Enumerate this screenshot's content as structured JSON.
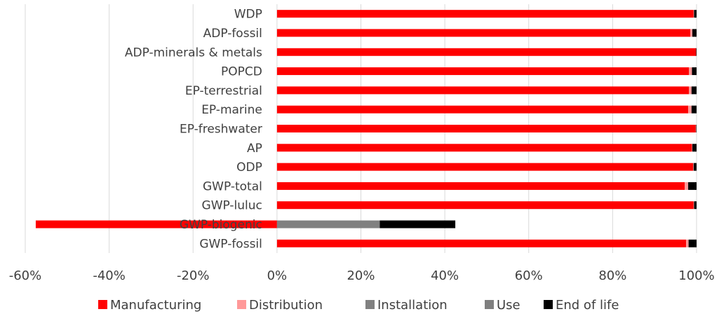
{
  "chart_data": {
    "type": "bar",
    "orientation": "horizontal",
    "stacked": true,
    "categories": [
      "GWP-fossil",
      "GWP-biogenic",
      "GWP-luluc",
      "GWP-total",
      "ODP",
      "AP",
      "EP-freshwater",
      "EP-marine",
      "EP-terrestrial",
      "POPCD",
      "ADP-minerals & metals",
      "ADP-fossil",
      "WDP"
    ],
    "series": [
      {
        "name": "Manufacturing",
        "color": "#ff0000",
        "values": [
          97.5,
          -57.5,
          99.3,
          97.2,
          99.2,
          98.9,
          99.8,
          98.0,
          98.2,
          98.2,
          99.9,
          98.5,
          99.3
        ]
      },
      {
        "name": "Distribution",
        "color": "#ff9999",
        "values": [
          0.6,
          0.0,
          0.1,
          0.8,
          0.1,
          0.1,
          0.1,
          0.8,
          0.6,
          0.7,
          0.0,
          0.5,
          0.1
        ]
      },
      {
        "name": "Installation",
        "color": "#808080",
        "values": [
          0.0,
          24.5,
          0.0,
          0.0,
          0.0,
          0.0,
          0.0,
          0.0,
          0.0,
          0.0,
          0.0,
          0.0,
          0.0
        ]
      },
      {
        "name": "Use",
        "color": "#7f7f7f",
        "values": [
          0.0,
          0.0,
          0.0,
          0.0,
          0.0,
          0.0,
          0.0,
          0.0,
          0.0,
          0.0,
          0.0,
          0.0,
          0.0
        ]
      },
      {
        "name": "End of life",
        "color": "#000000",
        "values": [
          1.9,
          18.0,
          0.6,
          2.0,
          0.7,
          1.0,
          0.1,
          1.2,
          1.2,
          1.1,
          0.1,
          1.0,
          0.6
        ]
      }
    ],
    "xlim": [
      -60,
      100
    ],
    "xticks": [
      -60,
      -40,
      -20,
      0,
      20,
      40,
      60,
      80,
      100
    ],
    "xtick_labels": [
      "-60%",
      "-40%",
      "-20%",
      "0%",
      "20%",
      "40%",
      "60%",
      "80%",
      "100%"
    ],
    "grid": true,
    "legend_position": "bottom",
    "title": "",
    "xlabel": "",
    "ylabel": ""
  }
}
